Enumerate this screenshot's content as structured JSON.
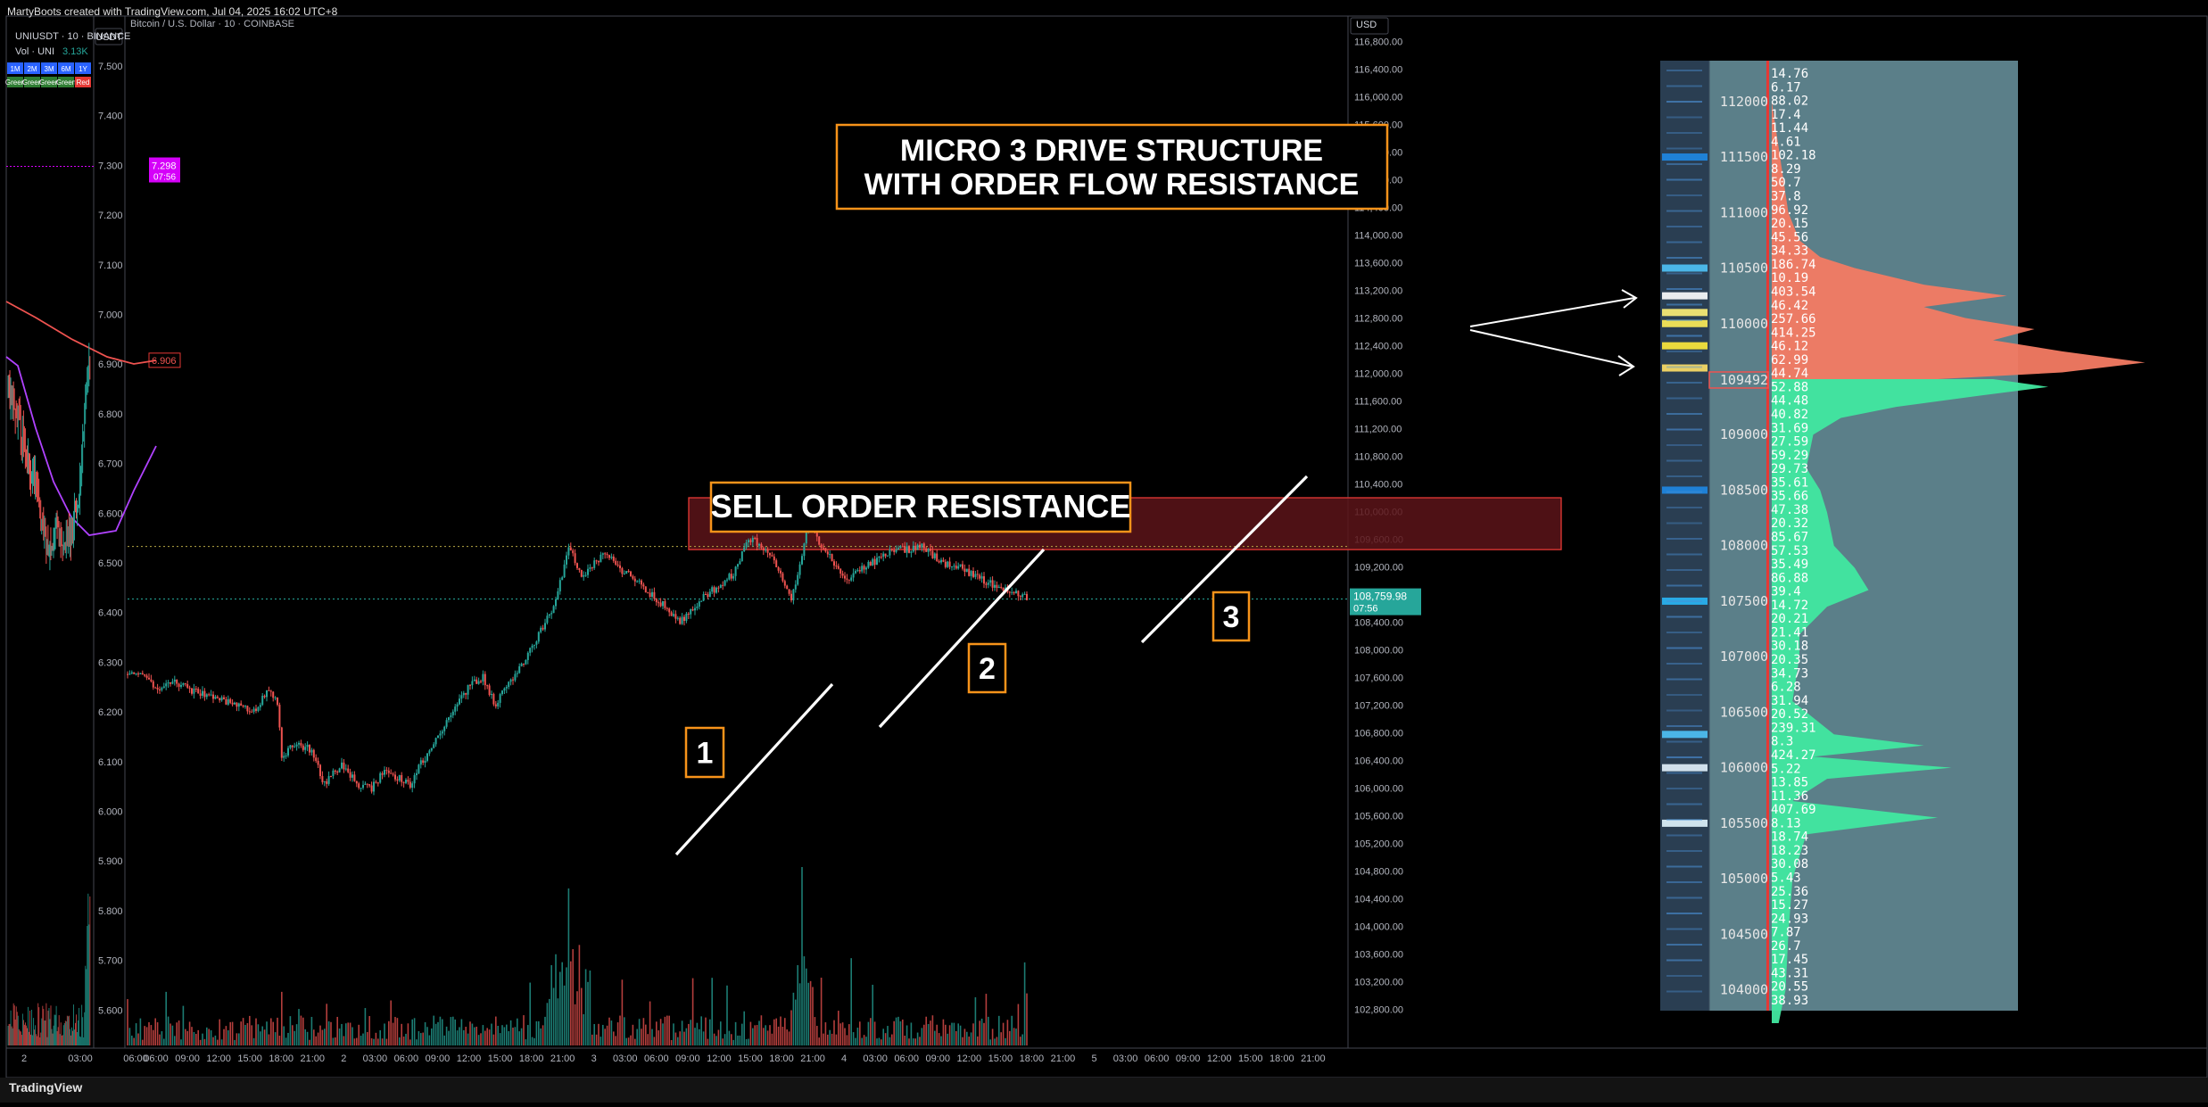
{
  "header": {
    "caption": "MartyBoots created with TradingView.com, Jul 04, 2025 16:02 UTC+8"
  },
  "footer": {
    "logo_text": "TradingView"
  },
  "colors": {
    "up": "#26a69a",
    "down": "#ef5350",
    "up_bright": "#3dffa0",
    "zone_fill": "#5c1419",
    "zone_border": "#e53935",
    "label_border": "#f7931a",
    "profile_bg": "#5b7f89",
    "sell_profile": "#f47b63",
    "buy_profile": "#41e8a0",
    "price_badge": "#26a69a",
    "magenta": "#d500f9",
    "ma_red": "#ef5350",
    "ma_purple": "#b042ff"
  },
  "left_pane": {
    "title": "UNIUSDT · 10 · BINANCE",
    "volume_label": "Vol · UNI",
    "volume_value": "3.13K",
    "timeframe_buttons": [
      "1M",
      "2M",
      "3M",
      "6M",
      "1Y"
    ],
    "status_labels": [
      "Green",
      "Green",
      "Green",
      "Green",
      "Red"
    ],
    "currency": "USDT",
    "price_axis": [
      "7.500",
      "7.400",
      "7.300",
      "7.200",
      "7.100",
      "7.000",
      "6.900",
      "6.800",
      "6.700",
      "6.600",
      "6.500",
      "6.400",
      "6.300",
      "6.200",
      "6.100",
      "6.000",
      "5.900",
      "5.800",
      "5.700",
      "5.600"
    ],
    "marker_price": "7.298",
    "marker_time": "07:56",
    "ma_value": "6.906",
    "time_axis": [
      "2",
      "03:00",
      "06:00"
    ]
  },
  "main_pane": {
    "title": "Bitcoin / U.S. Dollar · 10 · COINBASE",
    "currency": "USD",
    "heading_line1": "MICRO 3 DRIVE STRUCTURE",
    "heading_line2": "WITH ORDER FLOW RESISTANCE",
    "zone_label": "SELL ORDER RESISTANCE",
    "drive_labels": [
      "1",
      "2",
      "3"
    ],
    "price_axis": [
      "116,800.00",
      "116,400.00",
      "116,000.00",
      "115,600.00",
      "115,200.00",
      "114,800.00",
      "114,400.00",
      "114,000.00",
      "113,600.00",
      "113,200.00",
      "112,800.00",
      "112,400.00",
      "112,000.00",
      "111,600.00",
      "111,200.00",
      "110,800.00",
      "110,400.00",
      "110,000.00",
      "109,600.00",
      "109,200.00",
      "108,800.00",
      "108,400.00",
      "108,000.00",
      "107,600.00",
      "107,200.00",
      "106,800.00",
      "106,400.00",
      "106,000.00",
      "105,600.00",
      "105,200.00",
      "104,800.00",
      "104,400.00",
      "104,000.00",
      "103,600.00",
      "103,200.00",
      "102,800.00"
    ],
    "last_price": "108,759.98",
    "last_price_time": "07:56",
    "time_axis": [
      "06:00",
      "09:00",
      "12:00",
      "15:00",
      "18:00",
      "21:00",
      "2",
      "03:00",
      "06:00",
      "09:00",
      "12:00",
      "15:00",
      "18:00",
      "21:00",
      "3",
      "03:00",
      "06:00",
      "09:00",
      "12:00",
      "15:00",
      "18:00",
      "21:00",
      "4",
      "03:00",
      "06:00",
      "09:00",
      "12:00",
      "15:00",
      "18:00",
      "21:00",
      "5",
      "03:00",
      "06:00",
      "09:00",
      "12:00",
      "15:00",
      "18:00",
      "21:00"
    ]
  },
  "profile": {
    "price_levels": [
      "112000",
      "111500",
      "111000",
      "110500",
      "110000",
      "109492",
      "109000",
      "108500",
      "108000",
      "107500",
      "107000",
      "106500",
      "106000",
      "105500",
      "105000",
      "104500",
      "104000"
    ],
    "volumes": [
      "14.76",
      "6.17",
      "88.02",
      "17.4",
      "11.44",
      "4.61",
      "102.18",
      "8.29",
      "50.7",
      "37.8",
      "96.92",
      "20.15",
      "45.56",
      "34.33",
      "186.74",
      "10.19",
      "403.54",
      "46.42",
      "257.66",
      "414.25",
      "46.12",
      "62.99",
      "44.74",
      "52.88",
      "44.48",
      "40.82",
      "31.69",
      "27.59",
      "59.29",
      "29.73",
      "35.61",
      "35.66",
      "47.38",
      "20.32",
      "85.67",
      "57.53",
      "35.49",
      "86.88",
      "39.4",
      "14.72",
      "20.21",
      "21.41",
      "30.18",
      "20.35",
      "34.73",
      "6.28",
      "31.94",
      "20.52",
      "239.31",
      "8.3",
      "424.27",
      "5.22",
      "13.85",
      "11.36",
      "407.69",
      "8.13",
      "18.74",
      "18.23",
      "30.08",
      "5.43",
      "25.36",
      "15.27",
      "24.93",
      "7.87",
      "26.7",
      "17.45",
      "43.31",
      "20.55",
      "38.93"
    ]
  },
  "chart_data": [
    {
      "type": "candlestick",
      "title": "Bitcoin / U.S. Dollar · 10 · COINBASE",
      "ylabel": "USD",
      "ylim": [
        102600,
        117000
      ],
      "grid": false,
      "x_ticks": [
        "06:00",
        "09:00",
        "12:00",
        "15:00",
        "18:00",
        "21:00",
        "2",
        "03:00",
        "06:00",
        "09:00",
        "12:00",
        "15:00",
        "18:00",
        "21:00",
        "3",
        "03:00",
        "06:00",
        "09:00",
        "12:00",
        "15:00",
        "18:00",
        "21:00",
        "4",
        "03:00",
        "06:00",
        "09:00",
        "12:00",
        "15:00",
        "18:00",
        "21:00",
        "5",
        "03:00",
        "06:00",
        "09:00",
        "12:00",
        "15:00",
        "18:00",
        "21:00"
      ],
      "close_path": [
        [
          0,
          107650
        ],
        [
          6,
          107700
        ],
        [
          14,
          107400
        ],
        [
          22,
          107550
        ],
        [
          30,
          107400
        ],
        [
          38,
          107350
        ],
        [
          46,
          107250
        ],
        [
          54,
          107150
        ],
        [
          60,
          107150
        ],
        [
          66,
          107450
        ],
        [
          70,
          107200
        ],
        [
          72,
          106450
        ],
        [
          78,
          106650
        ],
        [
          86,
          106550
        ],
        [
          92,
          106050
        ],
        [
          100,
          106350
        ],
        [
          108,
          106050
        ],
        [
          114,
          106000
        ],
        [
          120,
          106250
        ],
        [
          132,
          106050
        ],
        [
          136,
          106300
        ],
        [
          148,
          106900
        ],
        [
          160,
          107500
        ],
        [
          166,
          107600
        ],
        [
          172,
          107200
        ],
        [
          176,
          107450
        ],
        [
          186,
          107850
        ],
        [
          194,
          108350
        ],
        [
          200,
          108700
        ],
        [
          206,
          109500
        ],
        [
          212,
          109050
        ],
        [
          218,
          109250
        ],
        [
          224,
          109400
        ],
        [
          228,
          109200
        ],
        [
          234,
          109100
        ],
        [
          246,
          108750
        ],
        [
          252,
          108600
        ],
        [
          258,
          108400
        ],
        [
          270,
          108800
        ],
        [
          278,
          108950
        ],
        [
          284,
          109150
        ],
        [
          288,
          109500
        ],
        [
          292,
          109600
        ],
        [
          300,
          109400
        ],
        [
          306,
          109050
        ],
        [
          310,
          108750
        ],
        [
          314,
          109200
        ],
        [
          318,
          109900
        ],
        [
          324,
          109500
        ],
        [
          330,
          109250
        ],
        [
          336,
          109000
        ],
        [
          342,
          109150
        ],
        [
          350,
          109300
        ],
        [
          358,
          109450
        ],
        [
          364,
          109450
        ],
        [
          372,
          109500
        ],
        [
          380,
          109250
        ],
        [
          386,
          109250
        ],
        [
          396,
          109050
        ],
        [
          404,
          108950
        ],
        [
          410,
          108850
        ],
        [
          416,
          108800
        ],
        [
          420,
          108750
        ]
      ],
      "series": [
        {
          "name": "Bitcoin / U.S. Dollar",
          "last": 108759.98
        }
      ],
      "annotations": [
        "MICRO 3 DRIVE STRUCTURE",
        "WITH ORDER FLOW RESISTANCE",
        "SELL ORDER RESISTANCE",
        "1",
        "2",
        "3"
      ],
      "sell_zone": [
        109450,
        110200
      ],
      "horizontal_levels": [
        109495,
        108735
      ]
    },
    {
      "type": "candlestick",
      "title": "UNIUSDT · 10 · BINANCE",
      "ylabel": "USDT",
      "ylim": [
        5.52,
        7.55
      ],
      "close_path": [
        [
          0,
          6.85
        ],
        [
          10,
          6.8
        ],
        [
          20,
          6.72
        ],
        [
          30,
          6.66
        ],
        [
          40,
          6.55
        ],
        [
          46,
          6.53
        ],
        [
          54,
          6.58
        ],
        [
          60,
          6.54
        ],
        [
          70,
          6.57
        ],
        [
          76,
          6.61
        ],
        [
          80,
          6.68
        ],
        [
          86,
          6.86
        ],
        [
          90,
          6.93
        ]
      ],
      "series": [
        {
          "name": "Vol · UNI",
          "last": 3.13
        }
      ],
      "marker": 7.298,
      "ma_value": 6.906
    }
  ]
}
